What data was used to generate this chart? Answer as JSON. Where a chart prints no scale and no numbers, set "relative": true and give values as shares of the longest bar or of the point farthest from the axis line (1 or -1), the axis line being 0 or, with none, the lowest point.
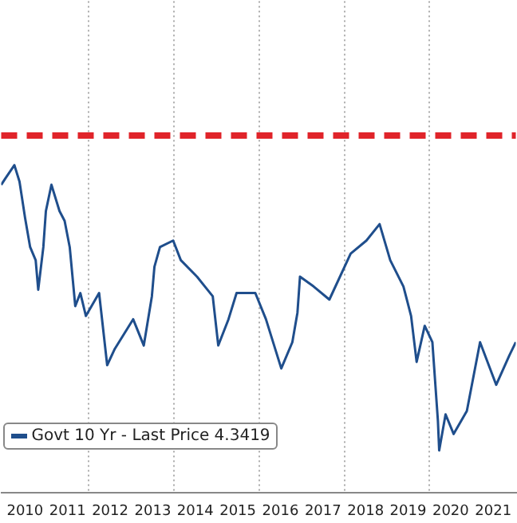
{
  "chart_data": {
    "type": "line",
    "relative": true,
    "grid": "x",
    "legend": "bottom left",
    "marker": "none",
    "line_style": "solid",
    "x": [
      2009.94,
      2010.04,
      2010.25,
      2010.37,
      2010.5,
      2010.62,
      2010.75,
      2010.81,
      2010.93,
      2010.99,
      2011.12,
      2011.31,
      2011.43,
      2011.55,
      2011.68,
      2011.8,
      2011.93,
      2012.24,
      2012.43,
      2012.61,
      2013.04,
      2013.29,
      2013.48,
      2013.54,
      2013.67,
      2013.98,
      2014.16,
      2014.54,
      2014.91,
      2015.04,
      2015.28,
      2015.47,
      2015.91,
      2016.16,
      2016.52,
      2016.78,
      2016.9,
      2016.96,
      2017.28,
      2017.65,
      2018.15,
      2018.52,
      2018.83,
      2019.08,
      2019.39,
      2019.57,
      2019.7,
      2019.89,
      2020.07,
      2020.2,
      2020.23,
      2020.38,
      2020.57,
      2020.88,
      2021.19,
      2021.57,
      2021.88,
      2022.03
    ],
    "xlim": [
      2009.94,
      2022.03
    ],
    "xticks": [
      {
        "value": 2010.5,
        "label": "2010"
      },
      {
        "value": 2011.5,
        "label": "2011"
      },
      {
        "value": 2012,
        "label": null
      },
      {
        "value": 2012.5,
        "label": "2012"
      },
      {
        "value": 2013.5,
        "label": "2013"
      },
      {
        "value": 2014,
        "label": null
      },
      {
        "value": 2014.5,
        "label": "2014"
      },
      {
        "value": 2015.5,
        "label": "2015"
      },
      {
        "value": 2016,
        "label": null
      },
      {
        "value": 2016.5,
        "label": "2016"
      },
      {
        "value": 2017.5,
        "label": "2017"
      },
      {
        "value": 2018,
        "label": null
      },
      {
        "value": 2018.5,
        "label": "2018"
      },
      {
        "value": 2019.5,
        "label": "2019"
      },
      {
        "value": 2020,
        "label": null
      },
      {
        "value": 2020.5,
        "label": "2020"
      },
      {
        "value": 2021.5,
        "label": "2021"
      }
    ],
    "series": [
      {
        "name": "Govt 10 Yr - Last Price 4.3419",
        "color": "#1f4e8c",
        "values": [
          0.94,
          0.96,
          1,
          0.95,
          0.84,
          0.75,
          0.71,
          0.62,
          0.75,
          0.86,
          0.94,
          0.86,
          0.83,
          0.75,
          0.57,
          0.61,
          0.54,
          0.61,
          0.39,
          0.44,
          0.53,
          0.45,
          0.6,
          0.69,
          0.75,
          0.77,
          0.71,
          0.66,
          0.6,
          0.45,
          0.53,
          0.61,
          0.61,
          0.53,
          0.38,
          0.46,
          0.55,
          0.66,
          0.63,
          0.59,
          0.73,
          0.77,
          0.82,
          0.71,
          0.63,
          0.54,
          0.4,
          0.51,
          0.46,
          0.22,
          0.13,
          0.24,
          0.18,
          0.25,
          0.46,
          0.33,
          0.42,
          0.46
        ]
      }
    ],
    "ref_lines": [
      {
        "axis": "y",
        "value": 1.09,
        "color": "#e0242a",
        "line_style": "dashed"
      }
    ]
  }
}
